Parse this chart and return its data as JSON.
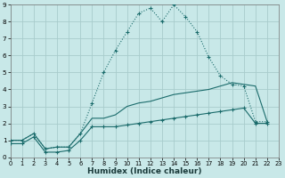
{
  "xlabel": "Humidex (Indice chaleur)",
  "bg_color": "#c8e8e8",
  "grid_color": "#a8cccc",
  "line_color": "#1a6b6b",
  "xlim": [
    0,
    23
  ],
  "ylim": [
    0,
    9
  ],
  "xticks": [
    0,
    1,
    2,
    3,
    4,
    5,
    6,
    7,
    8,
    9,
    10,
    11,
    12,
    13,
    14,
    15,
    16,
    17,
    18,
    19,
    20,
    21,
    22,
    23
  ],
  "yticks": [
    0,
    1,
    2,
    3,
    4,
    5,
    6,
    7,
    8,
    9
  ],
  "line_upper_x": [
    0,
    1,
    2,
    3,
    4,
    5,
    6,
    7,
    8,
    9,
    10,
    11,
    12,
    13,
    14,
    15,
    16,
    17,
    18,
    19,
    20,
    21,
    22
  ],
  "line_upper_y": [
    1.0,
    1.0,
    1.4,
    0.5,
    0.6,
    0.6,
    1.4,
    3.2,
    5.0,
    6.3,
    7.4,
    8.5,
    8.8,
    8.0,
    9.0,
    8.3,
    7.4,
    5.9,
    4.8,
    4.3,
    4.2,
    2.1,
    2.1
  ],
  "line_mid_x": [
    0,
    1,
    2,
    3,
    4,
    5,
    6,
    7,
    8,
    9,
    10,
    11,
    12,
    13,
    14,
    15,
    16,
    17,
    18,
    19,
    20,
    21,
    22
  ],
  "line_mid_y": [
    1.0,
    1.0,
    1.4,
    0.5,
    0.6,
    0.6,
    1.4,
    2.3,
    2.3,
    2.5,
    3.0,
    3.2,
    3.3,
    3.5,
    3.7,
    3.8,
    3.9,
    4.0,
    4.2,
    4.4,
    4.3,
    4.2,
    2.1
  ],
  "line_low_x": [
    0,
    1,
    2,
    3,
    4,
    5,
    6,
    7,
    8,
    9,
    10,
    11,
    12,
    13,
    14,
    15,
    16,
    17,
    18,
    19,
    20,
    21,
    22
  ],
  "line_low_y": [
    0.8,
    0.8,
    1.2,
    0.3,
    0.3,
    0.4,
    1.0,
    1.8,
    1.8,
    1.8,
    1.9,
    2.0,
    2.1,
    2.2,
    2.3,
    2.4,
    2.5,
    2.6,
    2.7,
    2.8,
    2.9,
    2.0,
    2.0
  ]
}
